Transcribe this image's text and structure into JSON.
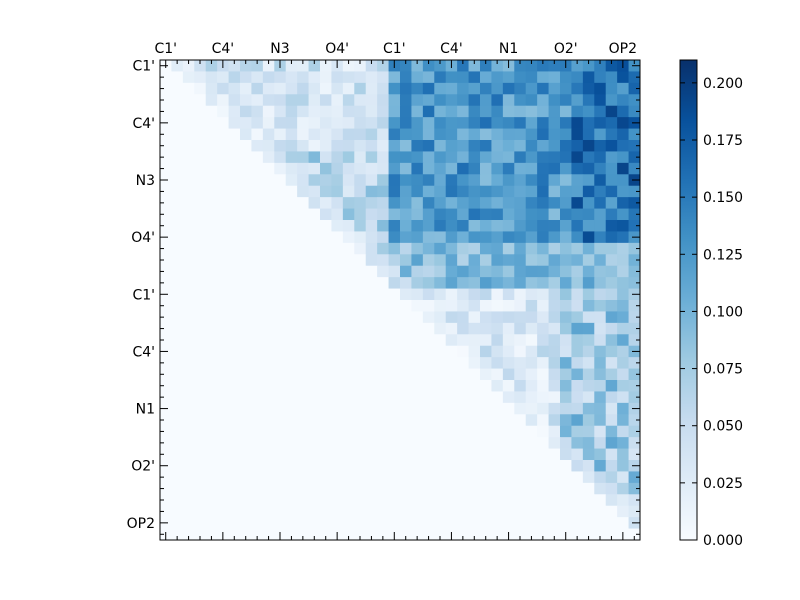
{
  "chart_data": {
    "type": "heatmap",
    "title": "",
    "xlabel": "",
    "ylabel": "",
    "size": 42,
    "tick_labels": [
      "C1'",
      "C4'",
      "N3",
      "O4'",
      "C1'",
      "C4'",
      "N1",
      "O2'",
      "OP2"
    ],
    "tick_positions": [
      0,
      5,
      10,
      15,
      20,
      25,
      30,
      35,
      40
    ],
    "colormap": "Blues",
    "colormap_stops": [
      "#f7fbff",
      "#deebf7",
      "#c6dbef",
      "#9ecae1",
      "#6baed6",
      "#4292c6",
      "#2171b5",
      "#08519c",
      "#08306b"
    ],
    "color_range": [
      0,
      0.21
    ],
    "colorbar_ticks": [
      "0.000",
      "0.025",
      "0.050",
      "0.075",
      "0.100",
      "0.125",
      "0.150",
      "0.175",
      "0.200"
    ],
    "seed": 7,
    "upper_triangle_only": true,
    "blocks": [
      {
        "rows": [
          0,
          20
        ],
        "cols": [
          0,
          20
        ],
        "mean": 0.04,
        "spread": 0.03
      },
      {
        "rows": [
          0,
          20
        ],
        "cols": [
          20,
          42
        ],
        "mean": 0.125,
        "spread": 0.035
      },
      {
        "rows": [
          20,
          42
        ],
        "cols": [
          20,
          42
        ],
        "mean": 0.035,
        "spread": 0.03
      },
      {
        "rows": [
          0,
          20
        ],
        "cols": [
          36,
          42
        ],
        "mean": 0.155,
        "spread": 0.04
      },
      {
        "rows": [
          20,
          42
        ],
        "cols": [
          35,
          42
        ],
        "mean": 0.075,
        "spread": 0.04
      },
      {
        "rows": [
          8,
          20
        ],
        "cols": [
          0,
          20
        ],
        "mean": 0.06,
        "spread": 0.035
      },
      {
        "rows": [
          16,
          20
        ],
        "cols": [
          20,
          42
        ],
        "mean": 0.09,
        "spread": 0.03
      }
    ]
  }
}
